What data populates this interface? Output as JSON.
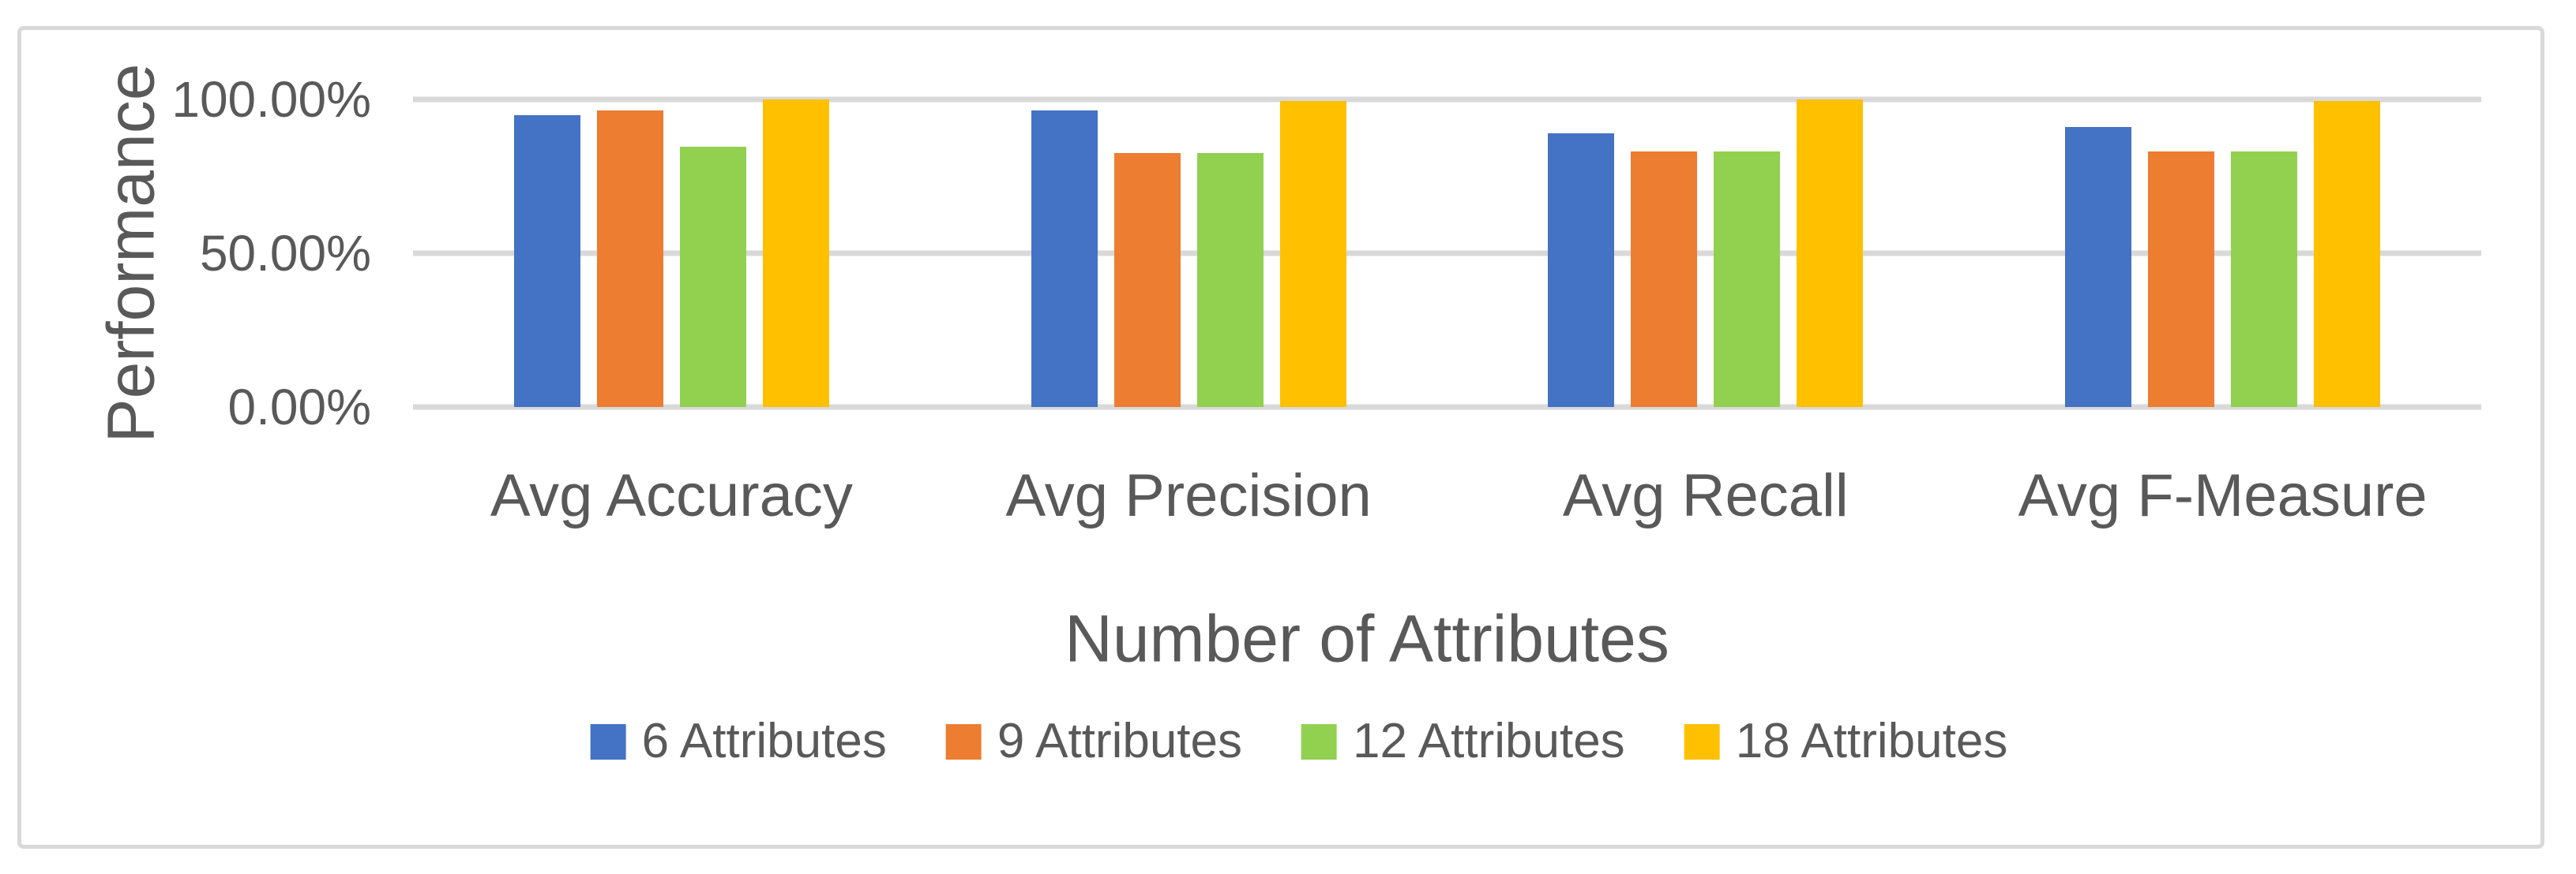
{
  "chart": {
    "y_axis_title": "Performance",
    "x_axis_title": "Number of Attributes",
    "colors": {
      "gridline": "#D9D9D9",
      "frame_border": "#D9D9D9",
      "text": "#595959",
      "background": "#FFFFFF"
    }
  },
  "chart_data": {
    "type": "bar",
    "title": "",
    "xlabel": "Number of Attributes",
    "ylabel": "Performance",
    "categories": [
      "Avg Accuracy",
      "Avg Precision",
      "Avg Recall",
      "Avg F-Measure"
    ],
    "series": [
      {
        "name": "6 Attributes",
        "color": "#4472C4",
        "values": [
          95,
          96.5,
          89,
          91
        ]
      },
      {
        "name": "9 Attributes",
        "color": "#ED7D31",
        "values": [
          96.5,
          82.5,
          83,
          83
        ]
      },
      {
        "name": "12 Attributes",
        "color": "#92D050",
        "values": [
          84.5,
          82.5,
          83,
          83
        ]
      },
      {
        "name": "18 Attributes",
        "color": "#FFC000",
        "values": [
          100,
          99.5,
          100,
          99.5
        ]
      }
    ],
    "ylim": [
      0,
      100
    ],
    "y_ticks": [
      {
        "label": "100.00%",
        "value": 100
      },
      {
        "label": "50.00%",
        "value": 50
      },
      {
        "label": "0.00%",
        "value": 0
      }
    ],
    "grid": true,
    "legend_position": "bottom"
  }
}
